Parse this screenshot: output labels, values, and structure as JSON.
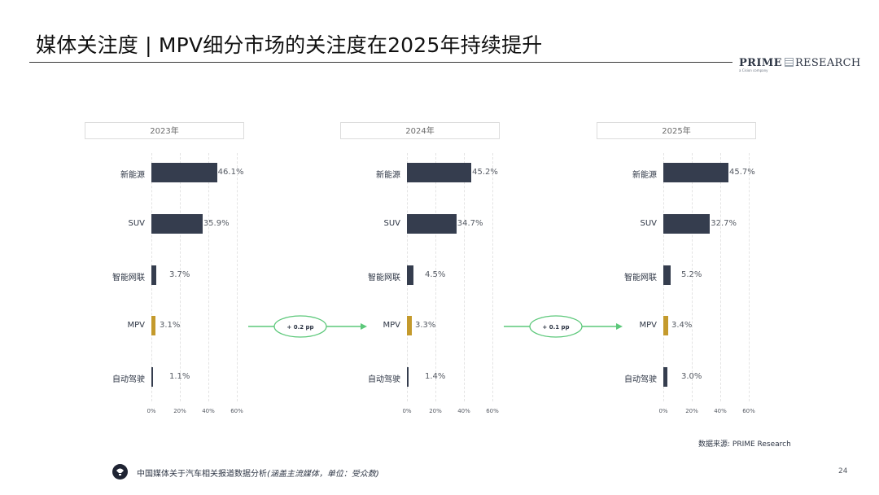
{
  "header": {
    "title": "媒体关注度 | MPV细分市场的关注度在2025年持续提升",
    "brand_primary": "PRIME",
    "brand_secondary": "RESEARCH",
    "brand_tagline": "a Cision company"
  },
  "chart_data": [
    {
      "type": "bar",
      "orientation": "horizontal",
      "title": "2023年",
      "categories": [
        "新能源",
        "SUV",
        "智能网联",
        "MPV",
        "自动驾驶"
      ],
      "values": [
        46.1,
        35.9,
        3.7,
        3.1,
        1.1
      ],
      "value_labels": [
        "46.1%",
        "35.9%",
        "3.7%",
        "3.1%",
        "1.1%"
      ],
      "xlim": [
        0,
        60
      ],
      "xticks": [
        0,
        20,
        40,
        60
      ],
      "xtick_labels": [
        "0%",
        "20%",
        "40%",
        "60%"
      ],
      "highlight_category": "MPV",
      "grid": true
    },
    {
      "type": "bar",
      "orientation": "horizontal",
      "title": "2024年",
      "categories": [
        "新能源",
        "SUV",
        "智能网联",
        "MPV",
        "自动驾驶"
      ],
      "values": [
        45.2,
        34.7,
        4.5,
        3.3,
        1.4
      ],
      "value_labels": [
        "45.2%",
        "34.7%",
        "4.5%",
        "3.3%",
        "1.4%"
      ],
      "xlim": [
        0,
        60
      ],
      "xticks": [
        0,
        20,
        40,
        60
      ],
      "xtick_labels": [
        "0%",
        "20%",
        "40%",
        "60%"
      ],
      "highlight_category": "MPV",
      "grid": true
    },
    {
      "type": "bar",
      "orientation": "horizontal",
      "title": "2025年",
      "categories": [
        "新能源",
        "SUV",
        "智能网联",
        "MPV",
        "自动驾驶"
      ],
      "values": [
        45.7,
        32.7,
        5.2,
        3.4,
        3.0
      ],
      "value_labels": [
        "45.7%",
        "32.7%",
        "5.2%",
        "3.4%",
        "3.0%"
      ],
      "xlim": [
        0,
        60
      ],
      "xticks": [
        0,
        20,
        40,
        60
      ],
      "xtick_labels": [
        "0%",
        "20%",
        "40%",
        "60%"
      ],
      "highlight_category": "MPV",
      "grid": true
    }
  ],
  "annotations": [
    {
      "label": "+ 0.2 pp"
    },
    {
      "label": "+ 0.1 pp"
    }
  ],
  "colors": {
    "bar": "#353d4e",
    "highlight": "#c49a2c",
    "arrow": "#5cc87a"
  },
  "source": "数据来源: PRIME Research",
  "footer": {
    "icon": "lightbulb-icon",
    "text": "中国媒体关于汽车相关报道数据分析",
    "note": "(涵盖主流媒体，单位：受众数)",
    "page_number": "24"
  }
}
